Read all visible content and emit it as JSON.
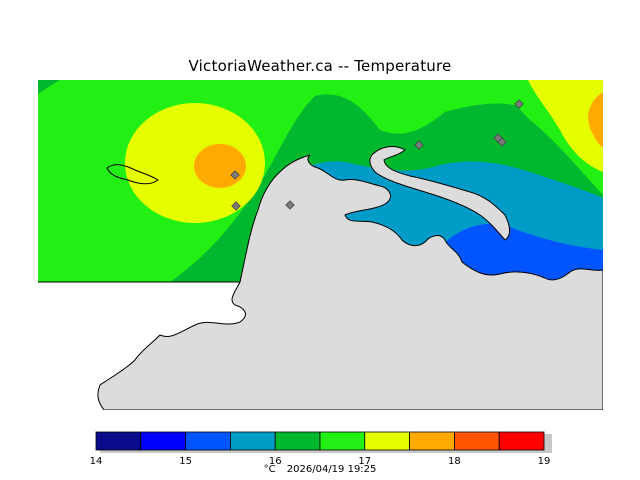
{
  "title": "VictoriaWeather.ca -- Temperature",
  "legend": {
    "colors": [
      "#0a0a8c",
      "#0000ff",
      "#0055ff",
      "#009cc8",
      "#00b82e",
      "#22f014",
      "#e6ff00",
      "#ffaa00",
      "#ff5500",
      "#ff0000"
    ],
    "tick_labels": [
      "14",
      "15",
      "16",
      "17",
      "18",
      "19"
    ],
    "unit": "°C",
    "timestamp": "2026/04/19 19:25"
  },
  "map_colors": {
    "land": "#dcdcdc",
    "coast": "#000000",
    "station": "#7a7a7a"
  }
}
